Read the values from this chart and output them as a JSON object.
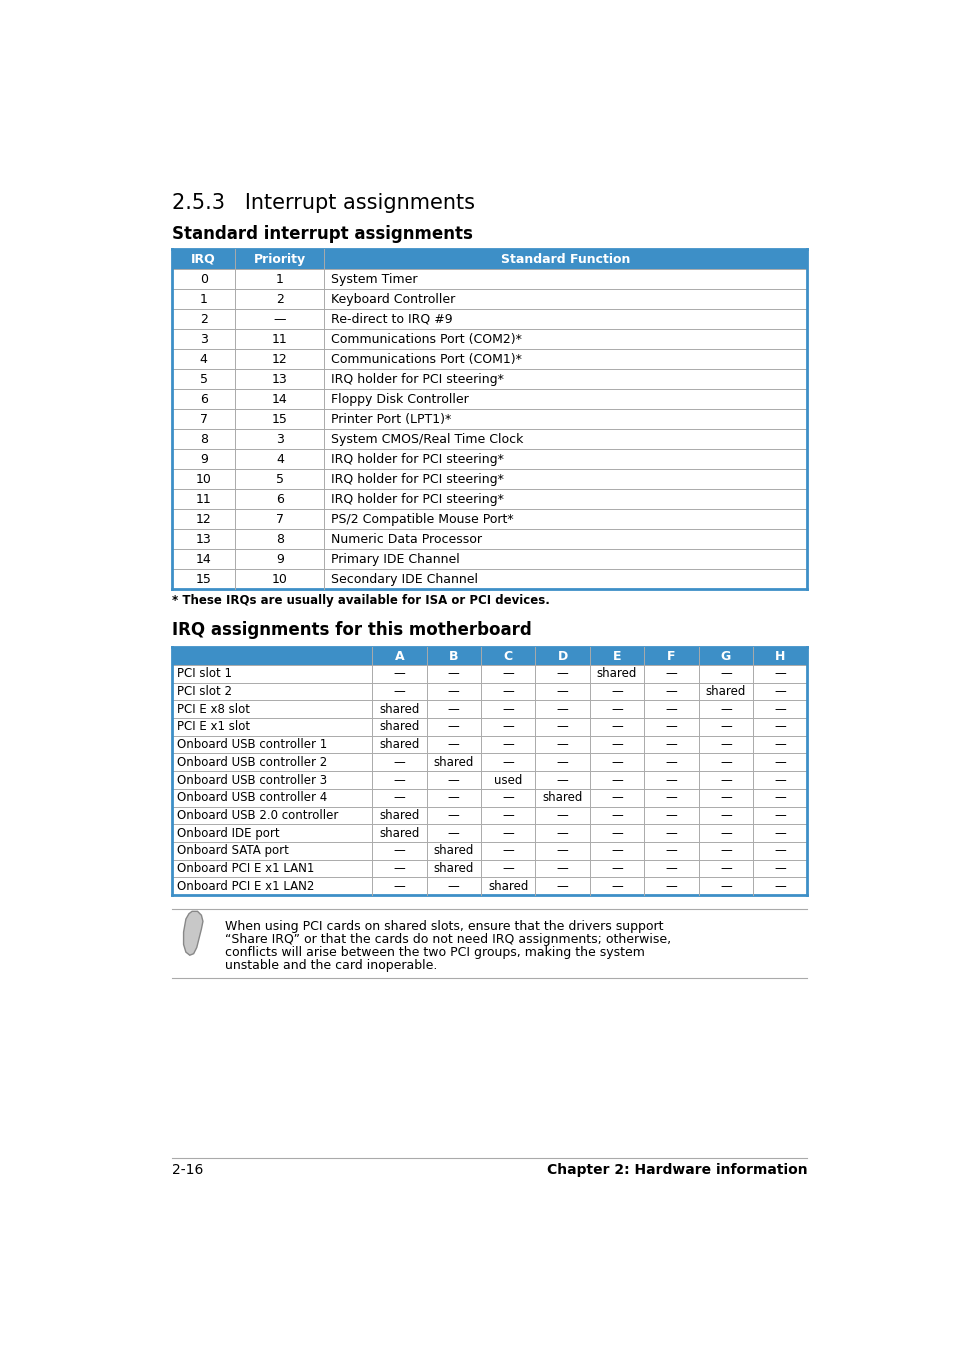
{
  "title1": "2.5.3   Interrupt assignments",
  "subtitle1": "Standard interrupt assignments",
  "header_color": "#3d8fc7",
  "header_text_color": "#ffffff",
  "table1_headers": [
    "IRQ",
    "Priority",
    "Standard Function"
  ],
  "table1_rows": [
    [
      "0",
      "1",
      "System Timer"
    ],
    [
      "1",
      "2",
      "Keyboard Controller"
    ],
    [
      "2",
      "—",
      "Re-direct to IRQ #9"
    ],
    [
      "3",
      "11",
      "Communications Port (COM2)*"
    ],
    [
      "4",
      "12",
      "Communications Port (COM1)*"
    ],
    [
      "5",
      "13",
      "IRQ holder for PCI steering*"
    ],
    [
      "6",
      "14",
      "Floppy Disk Controller"
    ],
    [
      "7",
      "15",
      "Printer Port (LPT1)*"
    ],
    [
      "8",
      "3",
      "System CMOS/Real Time Clock"
    ],
    [
      "9",
      "4",
      "IRQ holder for PCI steering*"
    ],
    [
      "10",
      "5",
      "IRQ holder for PCI steering*"
    ],
    [
      "11",
      "6",
      "IRQ holder for PCI steering*"
    ],
    [
      "12",
      "7",
      "PS/2 Compatible Mouse Port*"
    ],
    [
      "13",
      "8",
      "Numeric Data Processor"
    ],
    [
      "14",
      "9",
      "Primary IDE Channel"
    ],
    [
      "15",
      "10",
      "Secondary IDE Channel"
    ]
  ],
  "footnote1": "* These IRQs are usually available for ISA or PCI devices.",
  "subtitle2": "IRQ assignments for this motherboard",
  "table2_headers": [
    "",
    "A",
    "B",
    "C",
    "D",
    "E",
    "F",
    "G",
    "H"
  ],
  "table2_rows": [
    [
      "PCI slot 1",
      "—",
      "—",
      "—",
      "—",
      "shared",
      "—",
      "—",
      "—"
    ],
    [
      "PCI slot 2",
      "—",
      "—",
      "—",
      "—",
      "—",
      "—",
      "shared",
      "—"
    ],
    [
      "PCI E x8 slot",
      "shared",
      "—",
      "—",
      "—",
      "—",
      "—",
      "—",
      "—"
    ],
    [
      "PCI E x1 slot",
      "shared",
      "—",
      "—",
      "—",
      "—",
      "—",
      "—",
      "—"
    ],
    [
      "Onboard USB controller 1",
      "shared",
      "—",
      "—",
      "—",
      "—",
      "—",
      "—",
      "—"
    ],
    [
      "Onboard USB controller 2",
      "—",
      "shared",
      "—",
      "—",
      "—",
      "—",
      "—",
      "—"
    ],
    [
      "Onboard USB controller 3",
      "—",
      "—",
      "used",
      "—",
      "—",
      "—",
      "—",
      "—"
    ],
    [
      "Onboard USB controller 4",
      "—",
      "—",
      "—",
      "shared",
      "—",
      "—",
      "—",
      "—"
    ],
    [
      "Onboard USB 2.0 controller",
      "shared",
      "—",
      "—",
      "—",
      "—",
      "—",
      "—",
      "—"
    ],
    [
      "Onboard IDE port",
      "shared",
      "—",
      "—",
      "—",
      "—",
      "—",
      "—",
      "—"
    ],
    [
      "Onboard SATA port",
      "—",
      "shared",
      "—",
      "—",
      "—",
      "—",
      "—",
      "—"
    ],
    [
      "Onboard PCI E x1 LAN1",
      "—",
      "shared",
      "—",
      "—",
      "—",
      "—",
      "—",
      "—"
    ],
    [
      "Onboard PCI E x1 LAN2",
      "—",
      "—",
      "shared",
      "—",
      "—",
      "—",
      "—",
      "—"
    ]
  ],
  "note_lines": [
    "When using PCI cards on shared slots, ensure that the drivers support",
    "“Share IRQ” or that the cards do not need IRQ assignments; otherwise,",
    "conflicts will arise between the two PCI groups, making the system",
    "unstable and the card inoperable."
  ],
  "footer_left": "2-16",
  "footer_right": "Chapter 2: Hardware information",
  "bg_color": "#ffffff",
  "border_color": "#3d8fc7",
  "text_color": "#000000"
}
